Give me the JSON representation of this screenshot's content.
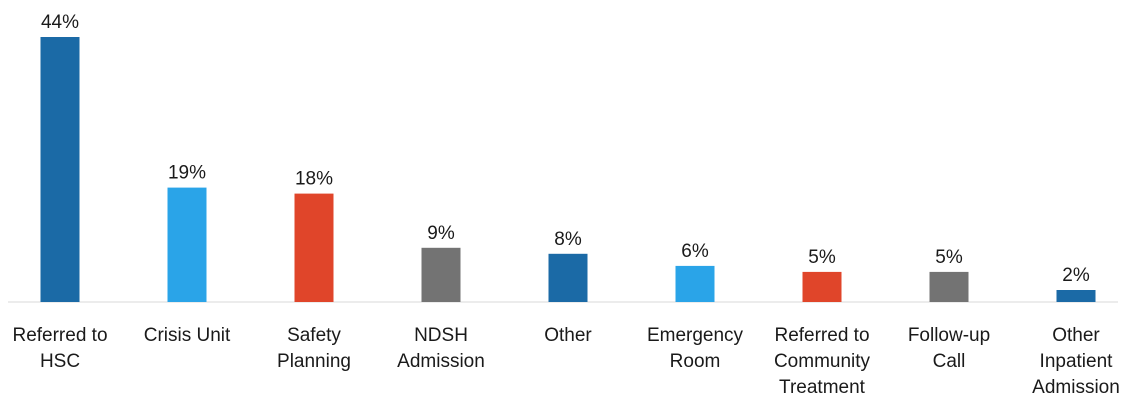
{
  "chart_data": {
    "type": "bar",
    "title": "",
    "xlabel": "",
    "ylabel": "",
    "ylim": [
      0,
      44
    ],
    "grid": false,
    "legend": "none",
    "categories": [
      [
        "Referred to",
        "HSC"
      ],
      [
        "Crisis Unit"
      ],
      [
        "Safety",
        "Planning"
      ],
      [
        "NDSH",
        "Admission"
      ],
      [
        "Other"
      ],
      [
        "Emergency",
        "Room"
      ],
      [
        "Referred to",
        "Community",
        "Treatment"
      ],
      [
        "Follow-up",
        "Call"
      ],
      [
        "Other",
        "Inpatient",
        "Admission"
      ]
    ],
    "values": [
      44,
      19,
      18,
      9,
      8,
      6,
      5,
      5,
      2
    ],
    "value_labels": [
      "44%",
      "19%",
      "18%",
      "9%",
      "8%",
      "6%",
      "5%",
      "5%",
      "2%"
    ],
    "colors": [
      "#1b6aa6",
      "#2aa4e8",
      "#e0452a",
      "#737373",
      "#1b6aa6",
      "#2aa4e8",
      "#e0452a",
      "#737373",
      "#1b6aa6"
    ]
  }
}
